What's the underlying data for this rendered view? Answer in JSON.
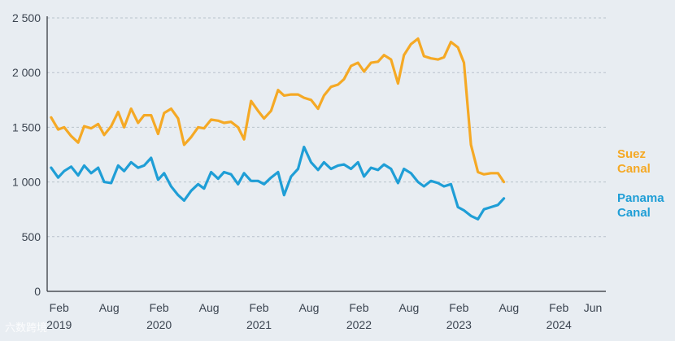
{
  "chart_data": {
    "type": "line",
    "title": "",
    "xlabel": "",
    "ylabel": "",
    "ylim": [
      0,
      2500
    ],
    "yticks": [
      {
        "value": 0,
        "label": "0"
      },
      {
        "value": 500,
        "label": "500"
      },
      {
        "value": 1000,
        "label": "1 000"
      },
      {
        "value": 1500,
        "label": "1 500"
      },
      {
        "value": 2000,
        "label": "2 000"
      },
      {
        "value": 2500,
        "label": "2 500"
      }
    ],
    "xlim": [
      2018.96,
      2024.55
    ],
    "month_ticks": [
      {
        "pos": 2019.08,
        "label": "Feb"
      },
      {
        "pos": 2019.58,
        "label": "Aug"
      },
      {
        "pos": 2020.08,
        "label": "Feb"
      },
      {
        "pos": 2020.58,
        "label": "Aug"
      },
      {
        "pos": 2021.08,
        "label": "Feb"
      },
      {
        "pos": 2021.58,
        "label": "Aug"
      },
      {
        "pos": 2022.08,
        "label": "Feb"
      },
      {
        "pos": 2022.58,
        "label": "Aug"
      },
      {
        "pos": 2023.08,
        "label": "Feb"
      },
      {
        "pos": 2023.58,
        "label": "Aug"
      },
      {
        "pos": 2024.08,
        "label": "Feb"
      },
      {
        "pos": 2024.42,
        "label": "Jun"
      }
    ],
    "year_ticks": [
      {
        "pos": 2019.08,
        "label": "2019"
      },
      {
        "pos": 2020.08,
        "label": "2020"
      },
      {
        "pos": 2021.08,
        "label": "2021"
      },
      {
        "pos": 2022.08,
        "label": "2022"
      },
      {
        "pos": 2023.08,
        "label": "2023"
      },
      {
        "pos": 2024.08,
        "label": "2024"
      }
    ],
    "series": [
      {
        "name": "Suez Canal",
        "label_lines": [
          "Suez",
          "Canal"
        ],
        "color": "#f5a925",
        "values": [
          [
            2019.0,
            1590
          ],
          [
            2019.07,
            1480
          ],
          [
            2019.13,
            1500
          ],
          [
            2019.2,
            1420
          ],
          [
            2019.27,
            1360
          ],
          [
            2019.33,
            1510
          ],
          [
            2019.4,
            1490
          ],
          [
            2019.47,
            1530
          ],
          [
            2019.53,
            1430
          ],
          [
            2019.6,
            1510
          ],
          [
            2019.67,
            1640
          ],
          [
            2019.73,
            1500
          ],
          [
            2019.8,
            1670
          ],
          [
            2019.87,
            1540
          ],
          [
            2019.93,
            1610
          ],
          [
            2020.0,
            1610
          ],
          [
            2020.07,
            1440
          ],
          [
            2020.13,
            1630
          ],
          [
            2020.2,
            1670
          ],
          [
            2020.27,
            1580
          ],
          [
            2020.33,
            1340
          ],
          [
            2020.4,
            1410
          ],
          [
            2020.47,
            1500
          ],
          [
            2020.53,
            1490
          ],
          [
            2020.6,
            1570
          ],
          [
            2020.67,
            1560
          ],
          [
            2020.73,
            1540
          ],
          [
            2020.8,
            1550
          ],
          [
            2020.87,
            1500
          ],
          [
            2020.93,
            1390
          ],
          [
            2021.0,
            1740
          ],
          [
            2021.07,
            1650
          ],
          [
            2021.13,
            1580
          ],
          [
            2021.2,
            1650
          ],
          [
            2021.27,
            1840
          ],
          [
            2021.33,
            1790
          ],
          [
            2021.4,
            1800
          ],
          [
            2021.47,
            1800
          ],
          [
            2021.53,
            1770
          ],
          [
            2021.6,
            1750
          ],
          [
            2021.67,
            1670
          ],
          [
            2021.73,
            1790
          ],
          [
            2021.8,
            1870
          ],
          [
            2021.87,
            1890
          ],
          [
            2021.93,
            1940
          ],
          [
            2022.0,
            2060
          ],
          [
            2022.07,
            2090
          ],
          [
            2022.13,
            2010
          ],
          [
            2022.2,
            2090
          ],
          [
            2022.27,
            2100
          ],
          [
            2022.33,
            2160
          ],
          [
            2022.4,
            2120
          ],
          [
            2022.47,
            1900
          ],
          [
            2022.53,
            2160
          ],
          [
            2022.6,
            2260
          ],
          [
            2022.67,
            2310
          ],
          [
            2022.73,
            2150
          ],
          [
            2022.8,
            2130
          ],
          [
            2022.87,
            2120
          ],
          [
            2022.93,
            2140
          ],
          [
            2023.0,
            2280
          ],
          [
            2023.07,
            2230
          ],
          [
            2023.13,
            2090
          ],
          [
            2023.2,
            1340
          ],
          [
            2023.27,
            1090
          ],
          [
            2023.33,
            1070
          ],
          [
            2023.4,
            1080
          ],
          [
            2023.47,
            1080
          ],
          [
            2023.53,
            1000
          ]
        ]
      },
      {
        "name": "Panama Canal",
        "label_lines": [
          "Panama",
          "Canal"
        ],
        "color": "#1f9ed6",
        "values": [
          [
            2019.0,
            1130
          ],
          [
            2019.07,
            1040
          ],
          [
            2019.13,
            1100
          ],
          [
            2019.2,
            1140
          ],
          [
            2019.27,
            1060
          ],
          [
            2019.33,
            1150
          ],
          [
            2019.4,
            1080
          ],
          [
            2019.47,
            1130
          ],
          [
            2019.53,
            1000
          ],
          [
            2019.6,
            990
          ],
          [
            2019.67,
            1150
          ],
          [
            2019.73,
            1100
          ],
          [
            2019.8,
            1180
          ],
          [
            2019.87,
            1130
          ],
          [
            2019.93,
            1150
          ],
          [
            2020.0,
            1220
          ],
          [
            2020.07,
            1020
          ],
          [
            2020.13,
            1080
          ],
          [
            2020.2,
            960
          ],
          [
            2020.27,
            880
          ],
          [
            2020.33,
            830
          ],
          [
            2020.4,
            920
          ],
          [
            2020.47,
            980
          ],
          [
            2020.53,
            940
          ],
          [
            2020.6,
            1090
          ],
          [
            2020.67,
            1030
          ],
          [
            2020.73,
            1090
          ],
          [
            2020.8,
            1070
          ],
          [
            2020.87,
            980
          ],
          [
            2020.93,
            1080
          ],
          [
            2021.0,
            1010
          ],
          [
            2021.07,
            1010
          ],
          [
            2021.13,
            980
          ],
          [
            2021.2,
            1040
          ],
          [
            2021.27,
            1090
          ],
          [
            2021.33,
            880
          ],
          [
            2021.4,
            1050
          ],
          [
            2021.47,
            1120
          ],
          [
            2021.53,
            1320
          ],
          [
            2021.6,
            1180
          ],
          [
            2021.67,
            1110
          ],
          [
            2021.73,
            1180
          ],
          [
            2021.8,
            1120
          ],
          [
            2021.87,
            1150
          ],
          [
            2021.93,
            1160
          ],
          [
            2022.0,
            1120
          ],
          [
            2022.07,
            1180
          ],
          [
            2022.13,
            1050
          ],
          [
            2022.2,
            1130
          ],
          [
            2022.27,
            1110
          ],
          [
            2022.33,
            1160
          ],
          [
            2022.4,
            1120
          ],
          [
            2022.47,
            990
          ],
          [
            2022.53,
            1120
          ],
          [
            2022.6,
            1080
          ],
          [
            2022.67,
            1000
          ],
          [
            2022.73,
            960
          ],
          [
            2022.8,
            1010
          ],
          [
            2022.87,
            990
          ],
          [
            2022.93,
            960
          ],
          [
            2023.0,
            980
          ],
          [
            2023.07,
            770
          ],
          [
            2023.13,
            740
          ],
          [
            2023.2,
            690
          ],
          [
            2023.27,
            660
          ],
          [
            2023.33,
            750
          ],
          [
            2023.4,
            770
          ],
          [
            2023.47,
            790
          ],
          [
            2023.53,
            850
          ]
        ]
      }
    ],
    "grid": true,
    "legend_placement": "right, beside line ends"
  },
  "watermark": "六数跨境"
}
